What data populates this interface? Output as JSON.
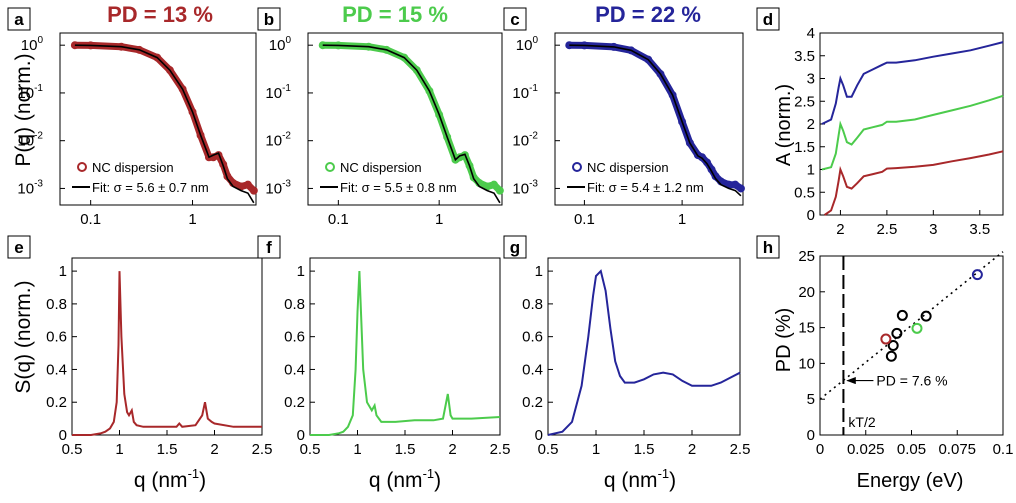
{
  "figure": {
    "title_a": "PD = 13 %",
    "title_b": "PD = 15 %",
    "title_c": "PD = 22 %",
    "ylabel_top": "P(q) (norm.)",
    "ylabel_bottom": "S(q) (norm.)",
    "xlabel_q": "q (nm",
    "xlabel_q_exp": "-1",
    "xlabel_q_close": ")",
    "xlabel_energy": "Energy (eV)",
    "ylabel_absorb": "A (norm.)",
    "ylabel_pd": "PD (%)",
    "annot_pd": "PD = 7.6 %",
    "annot_kt": "kT/2",
    "colors": {
      "red": "#a8282a",
      "green": "#4ccb4c",
      "blue": "#25259a",
      "black": "#000000"
    }
  },
  "chart_data": [
    {
      "panel": "a",
      "type": "line",
      "color": "red",
      "xscale": "log",
      "yscale": "log",
      "xlim": [
        0.05,
        4.2
      ],
      "ylim": [
        0.00045,
        1.8
      ],
      "xticks": [
        {
          "v": 0.1,
          "t": "0.1"
        },
        {
          "v": 1,
          "t": "1"
        }
      ],
      "yticks": [
        {
          "v": 1,
          "t": "10",
          "e": "0"
        },
        {
          "v": 0.1,
          "t": "10",
          "e": "-1"
        },
        {
          "v": 0.01,
          "t": "10",
          "e": "-2"
        },
        {
          "v": 0.001,
          "t": "10",
          "e": "-3"
        }
      ],
      "legend": [
        "NC dispersion",
        "Fit: σ = 5.6 ± 0.7 nm"
      ],
      "series_dots": {
        "x": [
          0.07,
          0.1,
          0.2,
          0.3,
          0.45,
          0.6,
          0.8,
          1.0,
          1.2,
          1.45,
          1.6,
          1.8,
          2.0,
          2.2,
          2.5,
          3.0,
          3.5,
          4.0
        ],
        "y": [
          1.0,
          0.99,
          0.93,
          0.8,
          0.55,
          0.3,
          0.12,
          0.04,
          0.013,
          0.0045,
          0.0045,
          0.005,
          0.0032,
          0.0018,
          0.0013,
          0.0011,
          0.0012,
          0.0009
        ]
      },
      "series_fit": {
        "x": [
          0.07,
          0.1,
          0.2,
          0.3,
          0.45,
          0.6,
          0.8,
          1.0,
          1.2,
          1.45,
          1.6,
          1.8,
          2.0,
          2.2,
          2.5,
          3.0,
          3.5,
          4.0
        ],
        "y": [
          1.0,
          0.99,
          0.93,
          0.8,
          0.55,
          0.3,
          0.12,
          0.04,
          0.013,
          0.0045,
          0.005,
          0.0055,
          0.003,
          0.0016,
          0.0011,
          0.0009,
          0.0008,
          0.0005
        ]
      }
    },
    {
      "panel": "b",
      "type": "line",
      "color": "green",
      "xscale": "log",
      "yscale": "log",
      "xlim": [
        0.05,
        4.2
      ],
      "ylim": [
        0.00045,
        1.8
      ],
      "xticks": [
        {
          "v": 0.1,
          "t": "0.1"
        },
        {
          "v": 1,
          "t": "1"
        }
      ],
      "yticks": [
        {
          "v": 1,
          "t": "10",
          "e": "0"
        },
        {
          "v": 0.1,
          "t": "10",
          "e": "-1"
        },
        {
          "v": 0.01,
          "t": "10",
          "e": "-2"
        },
        {
          "v": 0.001,
          "t": "10",
          "e": "-3"
        }
      ],
      "legend": [
        "NC dispersion",
        "Fit: σ = 5.5 ± 0.8 nm"
      ],
      "series_dots": {
        "x": [
          0.07,
          0.1,
          0.2,
          0.3,
          0.45,
          0.6,
          0.8,
          1.0,
          1.2,
          1.45,
          1.6,
          1.8,
          2.0,
          2.2,
          2.5,
          3.0,
          3.5,
          4.0
        ],
        "y": [
          1.0,
          0.99,
          0.93,
          0.8,
          0.55,
          0.3,
          0.11,
          0.035,
          0.012,
          0.004,
          0.0045,
          0.005,
          0.003,
          0.0017,
          0.0013,
          0.0011,
          0.0012,
          0.0009
        ]
      },
      "series_fit": {
        "x": [
          0.07,
          0.1,
          0.2,
          0.3,
          0.45,
          0.6,
          0.8,
          1.0,
          1.2,
          1.45,
          1.6,
          1.8,
          2.0,
          2.2,
          2.5,
          3.0,
          3.5,
          4.0
        ],
        "y": [
          1.0,
          0.99,
          0.93,
          0.8,
          0.55,
          0.3,
          0.11,
          0.035,
          0.012,
          0.004,
          0.0048,
          0.0052,
          0.003,
          0.0016,
          0.0011,
          0.0009,
          0.0008,
          0.0005
        ]
      }
    },
    {
      "panel": "c",
      "type": "line",
      "color": "blue",
      "xscale": "log",
      "yscale": "log",
      "xlim": [
        0.05,
        4.2
      ],
      "ylim": [
        0.00045,
        1.8
      ],
      "xticks": [
        {
          "v": 0.1,
          "t": "0.1"
        },
        {
          "v": 1,
          "t": "1"
        }
      ],
      "yticks": [
        {
          "v": 1,
          "t": "10",
          "e": "0"
        },
        {
          "v": 0.1,
          "t": "10",
          "e": "-1"
        },
        {
          "v": 0.01,
          "t": "10",
          "e": "-2"
        },
        {
          "v": 0.001,
          "t": "10",
          "e": "-3"
        }
      ],
      "legend": [
        "NC dispersion",
        "Fit: σ = 5.4 ± 1.2 nm"
      ],
      "series_dots": {
        "x": [
          0.07,
          0.1,
          0.2,
          0.3,
          0.45,
          0.6,
          0.8,
          1.0,
          1.2,
          1.45,
          1.6,
          1.8,
          2.0,
          2.2,
          2.5,
          3.0,
          3.5,
          4.0
        ],
        "y": [
          1.0,
          0.99,
          0.92,
          0.78,
          0.5,
          0.25,
          0.09,
          0.025,
          0.009,
          0.005,
          0.0045,
          0.0035,
          0.0025,
          0.0018,
          0.0014,
          0.0012,
          0.0012,
          0.001
        ]
      },
      "series_fit": {
        "x": [
          0.07,
          0.1,
          0.2,
          0.3,
          0.45,
          0.6,
          0.8,
          1.0,
          1.2,
          1.45,
          1.6,
          1.8,
          2.0,
          2.2,
          2.5,
          3.0,
          3.5,
          4.0
        ],
        "y": [
          1.0,
          0.99,
          0.92,
          0.78,
          0.5,
          0.25,
          0.09,
          0.025,
          0.009,
          0.0048,
          0.0043,
          0.0033,
          0.0023,
          0.0016,
          0.0012,
          0.001,
          0.0009,
          0.0007
        ]
      }
    },
    {
      "panel": "d",
      "type": "line",
      "xscale": "linear",
      "yscale": "linear",
      "xlim": [
        1.78,
        3.75
      ],
      "ylim": [
        0,
        4
      ],
      "xticks": [
        {
          "v": 2,
          "t": "2"
        },
        {
          "v": 2.5,
          "t": "2.5"
        },
        {
          "v": 3,
          "t": "3"
        },
        {
          "v": 3.5,
          "t": "3.5"
        }
      ],
      "yticks": [
        {
          "v": 0,
          "t": "0"
        },
        {
          "v": 0.5,
          "t": "0.5"
        },
        {
          "v": 1,
          "t": "1"
        },
        {
          "v": 1.5,
          "t": "1.5"
        },
        {
          "v": 2,
          "t": "2"
        },
        {
          "v": 2.5,
          "t": "2.5"
        },
        {
          "v": 3,
          "t": "3"
        },
        {
          "v": 3.5,
          "t": "3.5"
        },
        {
          "v": 4,
          "t": "4"
        }
      ],
      "series": [
        {
          "color": "red",
          "x": [
            1.83,
            1.9,
            1.95,
            1.98,
            2.0,
            2.03,
            2.07,
            2.12,
            2.18,
            2.25,
            2.35,
            2.45,
            2.5,
            2.6,
            2.8,
            3.0,
            3.2,
            3.4,
            3.6,
            3.75
          ],
          "y": [
            0.0,
            0.1,
            0.4,
            0.75,
            1.0,
            0.85,
            0.62,
            0.58,
            0.7,
            0.85,
            0.9,
            0.95,
            1.02,
            1.03,
            1.06,
            1.1,
            1.18,
            1.25,
            1.33,
            1.4
          ]
        },
        {
          "color": "green",
          "x": [
            1.8,
            1.9,
            1.95,
            1.98,
            2.0,
            2.03,
            2.07,
            2.12,
            2.18,
            2.25,
            2.35,
            2.45,
            2.5,
            2.6,
            2.8,
            3.0,
            3.2,
            3.4,
            3.6,
            3.75
          ],
          "y": [
            1.0,
            1.05,
            1.35,
            1.75,
            2.0,
            1.85,
            1.6,
            1.55,
            1.7,
            1.88,
            1.93,
            1.98,
            2.05,
            2.05,
            2.1,
            2.2,
            2.3,
            2.4,
            2.52,
            2.62
          ]
        },
        {
          "color": "blue",
          "x": [
            1.8,
            1.9,
            1.95,
            1.98,
            2.0,
            2.03,
            2.07,
            2.12,
            2.18,
            2.25,
            2.35,
            2.45,
            2.5,
            2.6,
            2.8,
            3.0,
            3.2,
            3.4,
            3.6,
            3.75
          ],
          "y": [
            2.0,
            2.1,
            2.45,
            2.8,
            3.0,
            2.85,
            2.6,
            2.6,
            2.85,
            3.1,
            3.2,
            3.3,
            3.35,
            3.35,
            3.4,
            3.48,
            3.55,
            3.62,
            3.72,
            3.8
          ]
        }
      ]
    },
    {
      "panel": "e",
      "type": "line",
      "color": "red",
      "xscale": "linear",
      "yscale": "linear",
      "xlim": [
        0.5,
        2.5
      ],
      "ylim": [
        0,
        1.08
      ],
      "xticks": [
        {
          "v": 0.5,
          "t": "0.5"
        },
        {
          "v": 1,
          "t": "1"
        },
        {
          "v": 1.5,
          "t": "1.5"
        },
        {
          "v": 2,
          "t": "2"
        },
        {
          "v": 2.5,
          "t": "2.5"
        }
      ],
      "yticks": [
        {
          "v": 0,
          "t": "0"
        },
        {
          "v": 0.2,
          "t": "0.2"
        },
        {
          "v": 0.4,
          "t": "0.4"
        },
        {
          "v": 0.6,
          "t": "0.6"
        },
        {
          "v": 0.8,
          "t": "0.8"
        },
        {
          "v": 1,
          "t": "1"
        }
      ],
      "x": [
        0.5,
        0.7,
        0.8,
        0.85,
        0.9,
        0.94,
        0.97,
        0.99,
        1.0,
        1.02,
        1.05,
        1.08,
        1.1,
        1.13,
        1.15,
        1.18,
        1.25,
        1.4,
        1.6,
        1.63,
        1.66,
        1.8,
        1.87,
        1.9,
        1.93,
        1.97,
        2.0,
        2.2,
        2.5
      ],
      "y": [
        0.0,
        0.0,
        0.01,
        0.02,
        0.04,
        0.08,
        0.2,
        0.55,
        1.0,
        0.6,
        0.25,
        0.14,
        0.12,
        0.15,
        0.08,
        0.06,
        0.05,
        0.05,
        0.05,
        0.07,
        0.05,
        0.06,
        0.12,
        0.2,
        0.1,
        0.08,
        0.07,
        0.05,
        0.05
      ]
    },
    {
      "panel": "f",
      "type": "line",
      "color": "green",
      "xscale": "linear",
      "yscale": "linear",
      "xlim": [
        0.5,
        2.5
      ],
      "ylim": [
        0,
        1.08
      ],
      "xticks": [
        {
          "v": 0.5,
          "t": "0.5"
        },
        {
          "v": 1,
          "t": "1"
        },
        {
          "v": 1.5,
          "t": "1.5"
        },
        {
          "v": 2,
          "t": "2"
        },
        {
          "v": 2.5,
          "t": "2.5"
        }
      ],
      "yticks": [
        {
          "v": 0,
          "t": "0"
        },
        {
          "v": 0.2,
          "t": "0.2"
        },
        {
          "v": 0.4,
          "t": "0.4"
        },
        {
          "v": 0.6,
          "t": "0.6"
        },
        {
          "v": 0.8,
          "t": "0.8"
        },
        {
          "v": 1,
          "t": "1"
        }
      ],
      "x": [
        0.5,
        0.7,
        0.8,
        0.85,
        0.9,
        0.95,
        0.98,
        1.0,
        1.02,
        1.04,
        1.06,
        1.1,
        1.15,
        1.18,
        1.2,
        1.25,
        1.4,
        1.6,
        1.8,
        1.9,
        1.95,
        1.98,
        2.0,
        2.2,
        2.5
      ],
      "y": [
        0.0,
        0.0,
        0.01,
        0.02,
        0.05,
        0.12,
        0.4,
        0.75,
        1.0,
        0.7,
        0.4,
        0.2,
        0.15,
        0.18,
        0.12,
        0.08,
        0.08,
        0.09,
        0.09,
        0.1,
        0.25,
        0.12,
        0.1,
        0.1,
        0.11
      ]
    },
    {
      "panel": "g",
      "type": "line",
      "color": "blue",
      "xscale": "linear",
      "yscale": "linear",
      "xlim": [
        0.5,
        2.5
      ],
      "ylim": [
        0,
        1.08
      ],
      "xticks": [
        {
          "v": 0.5,
          "t": "0.5"
        },
        {
          "v": 1,
          "t": "1"
        },
        {
          "v": 1.5,
          "t": "1.5"
        },
        {
          "v": 2,
          "t": "2"
        },
        {
          "v": 2.5,
          "t": "2.5"
        }
      ],
      "yticks": [
        {
          "v": 0,
          "t": "0"
        },
        {
          "v": 0.2,
          "t": "0.2"
        },
        {
          "v": 0.4,
          "t": "0.4"
        },
        {
          "v": 0.6,
          "t": "0.6"
        },
        {
          "v": 0.8,
          "t": "0.8"
        },
        {
          "v": 1,
          "t": "1"
        }
      ],
      "x": [
        0.5,
        0.65,
        0.75,
        0.85,
        0.92,
        0.97,
        1.0,
        1.05,
        1.1,
        1.15,
        1.2,
        1.25,
        1.3,
        1.4,
        1.5,
        1.6,
        1.7,
        1.8,
        1.9,
        2.0,
        2.1,
        2.2,
        2.3,
        2.4,
        2.5
      ],
      "y": [
        0.0,
        0.02,
        0.08,
        0.3,
        0.6,
        0.85,
        0.97,
        1.0,
        0.88,
        0.65,
        0.45,
        0.36,
        0.32,
        0.32,
        0.34,
        0.37,
        0.38,
        0.37,
        0.33,
        0.3,
        0.3,
        0.3,
        0.32,
        0.35,
        0.38
      ]
    },
    {
      "panel": "h",
      "type": "scatter",
      "xscale": "linear",
      "yscale": "linear",
      "xlim": [
        0,
        0.1
      ],
      "ylim": [
        0,
        25
      ],
      "xticks": [
        {
          "v": 0,
          "t": "0"
        },
        {
          "v": 0.025,
          "t": "0.025"
        },
        {
          "v": 0.05,
          "t": "0.05"
        },
        {
          "v": 0.075,
          "t": "0.075"
        },
        {
          "v": 0.1,
          "t": "0.1"
        }
      ],
      "yticks": [
        {
          "v": 0,
          "t": "0"
        },
        {
          "v": 5,
          "t": "5"
        },
        {
          "v": 10,
          "t": "10"
        },
        {
          "v": 15,
          "t": "15"
        },
        {
          "v": 20,
          "t": "20"
        },
        {
          "v": 25,
          "t": "25"
        }
      ],
      "points": [
        {
          "x": 0.039,
          "y": 11.0,
          "color": "black"
        },
        {
          "x": 0.04,
          "y": 12.5,
          "color": "black"
        },
        {
          "x": 0.042,
          "y": 14.2,
          "color": "black"
        },
        {
          "x": 0.045,
          "y": 16.7,
          "color": "black"
        },
        {
          "x": 0.058,
          "y": 16.6,
          "color": "black"
        },
        {
          "x": 0.036,
          "y": 13.4,
          "color": "red"
        },
        {
          "x": 0.053,
          "y": 14.9,
          "color": "green"
        },
        {
          "x": 0.086,
          "y": 22.4,
          "color": "blue"
        }
      ],
      "fit_line": {
        "x": [
          0,
          0.1
        ],
        "y": [
          5.0,
          25.6
        ]
      },
      "vline_x": 0.0128,
      "annotation_point": {
        "x": 0.0128,
        "y": 7.6
      }
    }
  ]
}
